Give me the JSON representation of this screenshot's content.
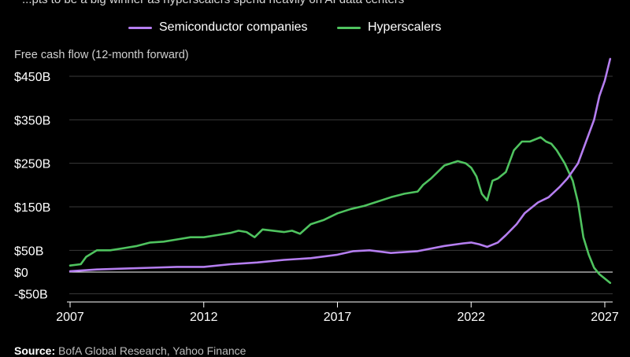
{
  "subtitle_partial": "...pts to be a big winner as hyperscalers spend heavily on AI data centers",
  "chart_data": {
    "type": "line",
    "title": "",
    "ylabel": "Free cash flow (12-month forward)",
    "xlabel": "",
    "xlim": [
      2006.9,
      2027.2
    ],
    "ylim": [
      -55,
      490
    ],
    "grid": true,
    "legend_placement": "top-center",
    "x_ticks": [
      2007,
      2012,
      2017,
      2022,
      2027
    ],
    "x_tick_labels": [
      "2007",
      "2012",
      "2017",
      "2022",
      "2027"
    ],
    "y_ticks": [
      -50,
      0,
      50,
      150,
      250,
      350,
      450
    ],
    "y_tick_labels": [
      "-$50B",
      "$0",
      "$50B",
      "$150B",
      "$250B",
      "$350B",
      "$450B"
    ],
    "series": [
      {
        "name": "Semiconductor companies",
        "color": "#b57ef0",
        "x": [
          2007.0,
          2008.0,
          2009.0,
          2010.0,
          2011.0,
          2012.0,
          2013.0,
          2014.0,
          2015.0,
          2016.0,
          2017.0,
          2017.6,
          2018.2,
          2019.0,
          2020.0,
          2021.0,
          2021.7,
          2022.0,
          2022.3,
          2022.6,
          2023.0,
          2023.3,
          2023.7,
          2024.0,
          2024.5,
          2024.9,
          2025.3,
          2025.6,
          2026.0,
          2026.3,
          2026.6,
          2026.8,
          2027.0,
          2027.2
        ],
        "y": [
          2,
          6,
          8,
          10,
          12,
          12,
          18,
          22,
          28,
          32,
          40,
          48,
          50,
          44,
          48,
          60,
          66,
          68,
          64,
          58,
          68,
          85,
          110,
          135,
          160,
          172,
          195,
          215,
          250,
          300,
          350,
          405,
          440,
          490
        ]
      },
      {
        "name": "Hyperscalers",
        "color": "#4fc35f",
        "x": [
          2007.0,
          2007.4,
          2007.6,
          2008.0,
          2008.5,
          2009.0,
          2009.5,
          2010.0,
          2010.5,
          2011.0,
          2011.5,
          2012.0,
          2012.5,
          2013.0,
          2013.3,
          2013.6,
          2013.9,
          2014.2,
          2014.6,
          2015.0,
          2015.3,
          2015.6,
          2016.0,
          2016.5,
          2017.0,
          2017.5,
          2018.0,
          2018.5,
          2019.0,
          2019.5,
          2020.0,
          2020.2,
          2020.5,
          2021.0,
          2021.5,
          2021.8,
          2022.0,
          2022.2,
          2022.4,
          2022.6,
          2022.8,
          2023.0,
          2023.3,
          2023.6,
          2023.9,
          2024.2,
          2024.6,
          2024.8,
          2025.0,
          2025.2,
          2025.5,
          2025.8,
          2026.0,
          2026.2,
          2026.4,
          2026.6,
          2026.8,
          2027.0,
          2027.2
        ],
        "y": [
          15,
          18,
          35,
          50,
          50,
          55,
          60,
          68,
          70,
          75,
          80,
          80,
          85,
          90,
          95,
          92,
          80,
          98,
          95,
          92,
          95,
          88,
          110,
          120,
          135,
          145,
          152,
          162,
          172,
          180,
          185,
          200,
          215,
          245,
          255,
          250,
          240,
          220,
          180,
          165,
          210,
          215,
          230,
          280,
          300,
          300,
          310,
          300,
          295,
          280,
          250,
          210,
          160,
          80,
          40,
          10,
          -5,
          -15,
          -25
        ]
      }
    ]
  },
  "source": {
    "label": "Source:",
    "text": "BofA Global Research, Yahoo Finance"
  }
}
